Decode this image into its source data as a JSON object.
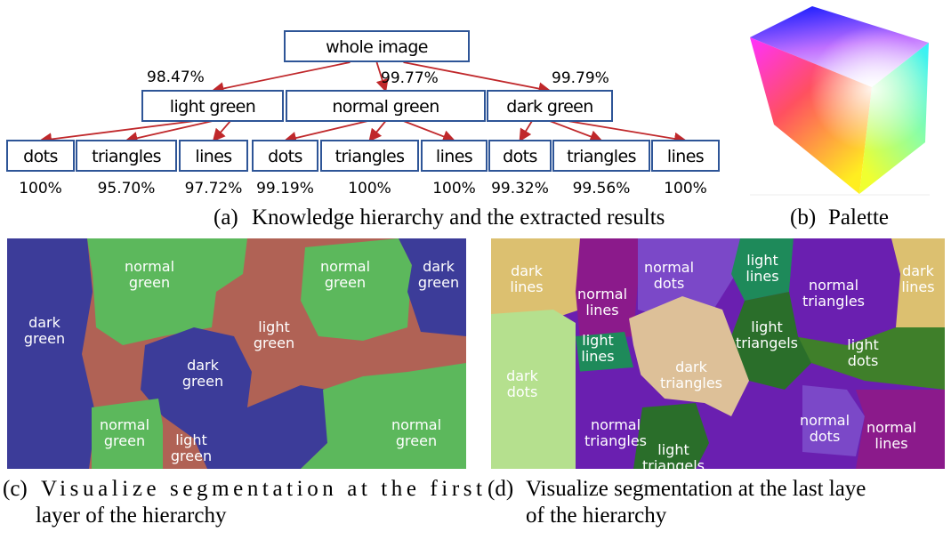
{
  "tree": {
    "root": "whole image",
    "groups": [
      {
        "label": "light green",
        "accuracy": "98.47%",
        "children": [
          {
            "label": "dots",
            "accuracy": "100%"
          },
          {
            "label": "triangles",
            "accuracy": "95.70%"
          },
          {
            "label": "lines",
            "accuracy": "97.72%"
          }
        ]
      },
      {
        "label": "normal green",
        "accuracy": "99.77%",
        "children": [
          {
            "label": "dots",
            "accuracy": "99.19%"
          },
          {
            "label": "triangles",
            "accuracy": "100%"
          },
          {
            "label": "lines",
            "accuracy": "100%"
          }
        ]
      },
      {
        "label": "dark green",
        "accuracy": "99.79%",
        "children": [
          {
            "label": "dots",
            "accuracy": "99.32%"
          },
          {
            "label": "triangles",
            "accuracy": "99.56%"
          },
          {
            "label": "lines",
            "accuracy": "100%"
          }
        ]
      }
    ]
  },
  "captions": {
    "a": {
      "marker": "(a)",
      "lines": [
        "Knowledge hierarchy and the extracted results"
      ]
    },
    "b": {
      "marker": "(b)",
      "lines": [
        "Palette"
      ]
    },
    "c": {
      "marker": "(c)",
      "lines": [
        "Visualize segmentation at the first",
        "layer of the hierarchy"
      ]
    },
    "d": {
      "marker": "(d)",
      "lines": [
        "Visualize segmentation at the last laye",
        "of the hierarchy"
      ]
    }
  },
  "maps": {
    "first_layer": {
      "regions": [
        [
          "dark",
          "green"
        ],
        [
          "normal",
          "green"
        ],
        [
          "normal",
          "green"
        ],
        [
          "dark",
          "green"
        ],
        [
          "light",
          "green"
        ],
        [
          "dark",
          "green"
        ],
        [
          "normal",
          "green"
        ],
        [
          "light",
          "green"
        ],
        [
          "normal",
          "green"
        ]
      ]
    },
    "last_layer": {
      "regions": [
        [
          "dark",
          "lines"
        ],
        [
          "normal",
          "lines"
        ],
        [
          "normal",
          "dots"
        ],
        [
          "light",
          "lines"
        ],
        [
          "normal",
          "triangles"
        ],
        [
          "dark",
          "lines"
        ],
        [
          "light",
          "triangels"
        ],
        [
          "light",
          "lines"
        ],
        [
          "dark",
          "triangles"
        ],
        [
          "dark",
          "dots"
        ],
        [
          "light",
          "dots"
        ],
        [
          "normal",
          "triangles"
        ],
        [
          "normal",
          "dots"
        ],
        [
          "normal",
          "lines"
        ],
        [
          "light",
          "triangels"
        ]
      ]
    }
  }
}
